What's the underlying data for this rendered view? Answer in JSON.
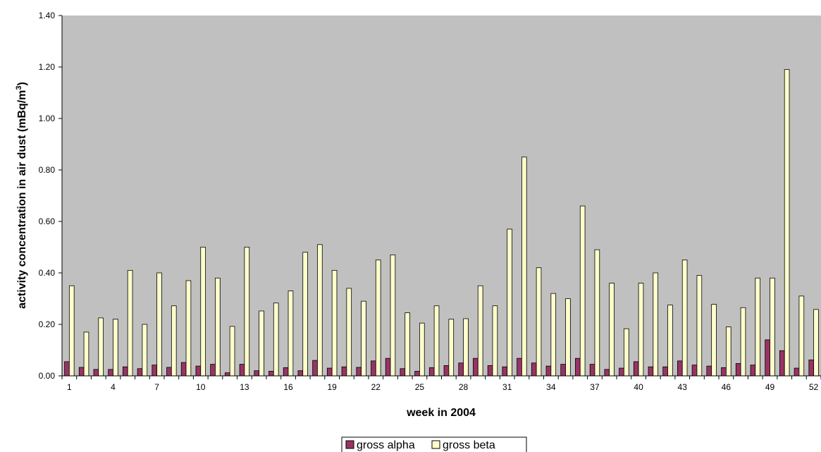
{
  "chart_data": {
    "type": "bar",
    "xlabel": "week in 2004",
    "ylabel_main": "activity concentration in air dust (mBq/m",
    "ylabel_sup": "3",
    "ylabel_end": ")",
    "ylim": [
      0,
      1.4
    ],
    "yticks": [
      "0.00",
      "0.20",
      "0.40",
      "0.60",
      "0.80",
      "1.00",
      "1.20",
      "1.40"
    ],
    "xtick_labels": [
      "1",
      "4",
      "7",
      "10",
      "13",
      "16",
      "19",
      "22",
      "25",
      "28",
      "31",
      "34",
      "37",
      "40",
      "43",
      "46",
      "49",
      "52"
    ],
    "grid": false,
    "legend_position": "bottom",
    "plot_background": "#c0c0c0",
    "categories": [
      "1",
      "2",
      "3",
      "4",
      "5",
      "6",
      "7",
      "8",
      "9",
      "10",
      "11",
      "12",
      "13",
      "14",
      "15",
      "16",
      "17",
      "18",
      "19",
      "20",
      "21",
      "22",
      "23",
      "24",
      "25",
      "26",
      "27",
      "28",
      "29",
      "30",
      "31",
      "32",
      "33",
      "34",
      "35",
      "36",
      "37",
      "38",
      "39",
      "40",
      "41",
      "42",
      "43",
      "44",
      "45",
      "46",
      "47",
      "48",
      "49",
      "50",
      "51",
      "52"
    ],
    "series": [
      {
        "name": "gross alpha",
        "color": "#993366",
        "values": [
          0.055,
          0.033,
          0.025,
          0.025,
          0.035,
          0.028,
          0.042,
          0.033,
          0.052,
          0.038,
          0.045,
          0.012,
          0.045,
          0.02,
          0.018,
          0.032,
          0.02,
          0.06,
          0.03,
          0.035,
          0.033,
          0.058,
          0.068,
          0.028,
          0.018,
          0.032,
          0.04,
          0.05,
          0.068,
          0.04,
          0.035,
          0.068,
          0.05,
          0.038,
          0.045,
          0.068,
          0.045,
          0.025,
          0.03,
          0.055,
          0.035,
          0.035,
          0.058,
          0.042,
          0.038,
          0.032,
          0.048,
          0.042,
          0.14,
          0.098,
          0.03,
          0.062
        ]
      },
      {
        "name": "gross beta",
        "color": "#ffffcc",
        "values": [
          0.35,
          0.17,
          0.225,
          0.22,
          0.41,
          0.2,
          0.4,
          0.272,
          0.37,
          0.5,
          0.38,
          0.192,
          0.5,
          0.252,
          0.283,
          0.33,
          0.48,
          0.51,
          0.41,
          0.34,
          0.29,
          0.45,
          0.47,
          0.245,
          0.205,
          0.272,
          0.22,
          0.222,
          0.35,
          0.272,
          0.57,
          0.85,
          0.42,
          0.32,
          0.3,
          0.66,
          0.49,
          0.36,
          0.183,
          0.36,
          0.4,
          0.275,
          0.45,
          0.39,
          0.278,
          0.19,
          0.265,
          0.38,
          0.38,
          1.19,
          0.31,
          0.258
        ]
      }
    ]
  }
}
